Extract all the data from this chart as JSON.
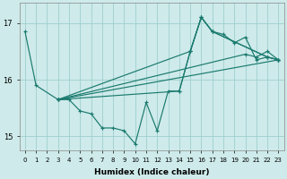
{
  "title": "",
  "xlabel": "Humidex (Indice chaleur)",
  "ylabel": "",
  "background_color": "#ceeaea",
  "grid_color": "#9fcfcf",
  "line_color": "#1a7a6e",
  "xlim": [
    -0.5,
    23.5
  ],
  "ylim": [
    14.75,
    17.35
  ],
  "xticks": [
    0,
    1,
    2,
    3,
    4,
    5,
    6,
    7,
    8,
    9,
    10,
    11,
    12,
    13,
    14,
    15,
    16,
    17,
    18,
    19,
    20,
    21,
    22,
    23
  ],
  "yticks": [
    15,
    16,
    17
  ],
  "series": [
    {
      "x": [
        0,
        1,
        3,
        4,
        5,
        6,
        7,
        8,
        9,
        10,
        11,
        12,
        13,
        14,
        15,
        16,
        17,
        22,
        23
      ],
      "y": [
        16.85,
        15.9,
        15.65,
        15.65,
        15.45,
        15.4,
        15.15,
        15.15,
        15.1,
        14.87,
        15.6,
        15.1,
        15.8,
        15.8,
        16.5,
        17.1,
        16.85,
        16.4,
        16.35
      ]
    },
    {
      "x": [
        3,
        23
      ],
      "y": [
        15.65,
        16.35
      ]
    },
    {
      "x": [
        3,
        20,
        21,
        22,
        23
      ],
      "y": [
        15.65,
        16.45,
        16.4,
        16.5,
        16.35
      ]
    },
    {
      "x": [
        3,
        15,
        16,
        17,
        18,
        19,
        20,
        21,
        22,
        23
      ],
      "y": [
        15.65,
        16.5,
        17.1,
        16.85,
        16.8,
        16.65,
        16.75,
        16.35,
        16.4,
        16.35
      ]
    },
    {
      "x": [
        3,
        14,
        15,
        16,
        17,
        22,
        23
      ],
      "y": [
        15.65,
        15.8,
        16.5,
        17.1,
        16.85,
        16.4,
        16.35
      ]
    }
  ]
}
